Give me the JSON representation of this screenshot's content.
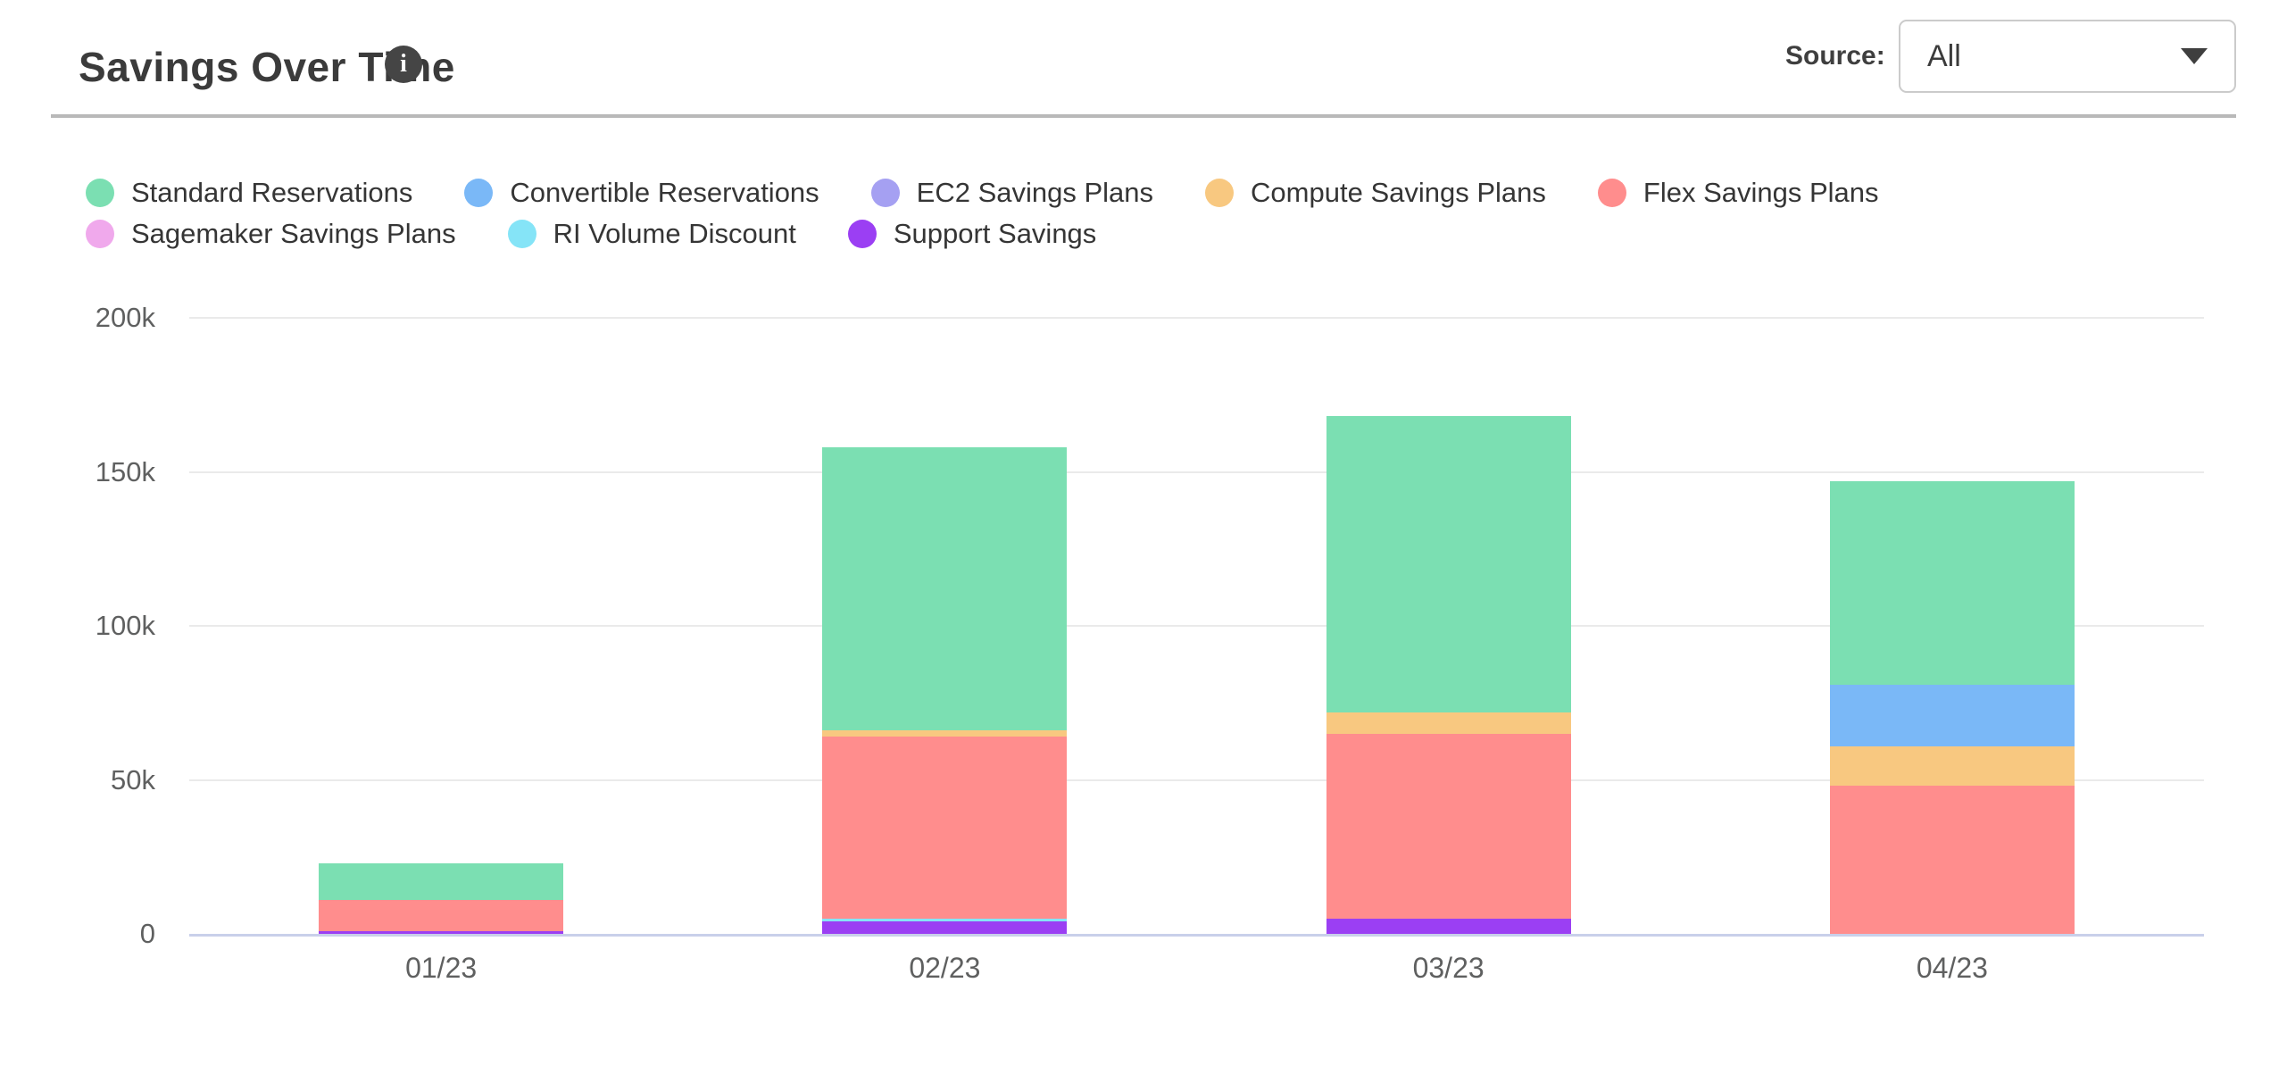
{
  "header": {
    "title": "Savings Over Time",
    "info_icon_glyph": "i",
    "source_label": "Source:",
    "source_value": "All"
  },
  "legend": [
    {
      "label": "Standard Reservations",
      "color": "#7bdfb2",
      "row": 1
    },
    {
      "label": "Convertible Reservations",
      "color": "#7ab8f7",
      "row": 1
    },
    {
      "label": "EC2 Savings Plans",
      "color": "#a5a0f2",
      "row": 1
    },
    {
      "label": "Compute Savings Plans",
      "color": "#f8c880",
      "row": 1
    },
    {
      "label": "Flex Savings Plans",
      "color": "#ff8d8d",
      "row": 1
    },
    {
      "label": "Sagemaker Savings Plans",
      "color": "#f0a9ec",
      "row": 2
    },
    {
      "label": "RI Volume Discount",
      "color": "#85e4f7",
      "row": 2
    },
    {
      "label": "Support Savings",
      "color": "#9b3ff3",
      "row": 2
    }
  ],
  "chart_data": {
    "type": "bar",
    "variant": "stacked",
    "title": "Savings Over Time",
    "unit": "thousands",
    "categories": [
      "01/23",
      "02/23",
      "03/23",
      "04/23"
    ],
    "series": [
      {
        "name": "Standard Reservations",
        "color": "#7bdfb2",
        "values": [
          12,
          92,
          96,
          66
        ]
      },
      {
        "name": "Convertible Reservations",
        "color": "#7ab8f7",
        "values": [
          0,
          0,
          0,
          20
        ]
      },
      {
        "name": "EC2 Savings Plans",
        "color": "#a5a0f2",
        "values": [
          0,
          0,
          0,
          0
        ]
      },
      {
        "name": "Compute Savings Plans",
        "color": "#f8c880",
        "values": [
          0,
          2,
          7,
          13
        ]
      },
      {
        "name": "Flex Savings Plans",
        "color": "#ff8d8d",
        "values": [
          10,
          59,
          60,
          48
        ]
      },
      {
        "name": "Sagemaker Savings Plans",
        "color": "#f0a9ec",
        "values": [
          0,
          0,
          0,
          0
        ]
      },
      {
        "name": "RI Volume Discount",
        "color": "#85e4f7",
        "values": [
          0,
          1,
          0,
          0
        ]
      },
      {
        "name": "Support Savings",
        "color": "#9b3ff3",
        "values": [
          1,
          4,
          5,
          0
        ]
      }
    ],
    "stack_order_bottom_to_top": [
      "Support Savings",
      "RI Volume Discount",
      "Sagemaker Savings Plans",
      "Flex Savings Plans",
      "Compute Savings Plans",
      "EC2 Savings Plans",
      "Convertible Reservations",
      "Standard Reservations"
    ],
    "totals": [
      23,
      158,
      168,
      147
    ],
    "y_ticks": [
      {
        "v": 0,
        "label": "0"
      },
      {
        "v": 50,
        "label": "50k"
      },
      {
        "v": 100,
        "label": "100k"
      },
      {
        "v": 150,
        "label": "150k"
      },
      {
        "v": 200,
        "label": "200k"
      }
    ],
    "ylim": [
      0,
      200
    ],
    "grid": true,
    "legend_position": "top",
    "colors": {
      "gridline": "#eaeaea",
      "axis_line": "#c9d0ea",
      "tick_text": "#5f6060"
    }
  }
}
